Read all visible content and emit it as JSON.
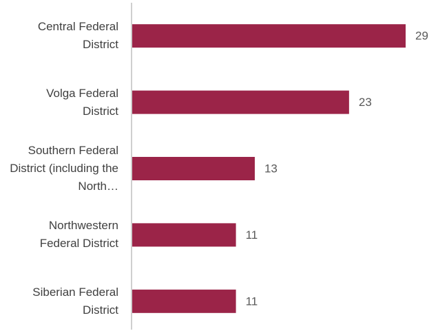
{
  "chart_data": {
    "type": "bar",
    "orientation": "horizontal",
    "categories": [
      "Central Federal District",
      "Volga Federal District",
      "Southern Federal District (including the North…",
      "Northwestern Federal District",
      "Siberian Federal District"
    ],
    "values": [
      29,
      23,
      13,
      11,
      11
    ],
    "color": "#9b2448"
  }
}
